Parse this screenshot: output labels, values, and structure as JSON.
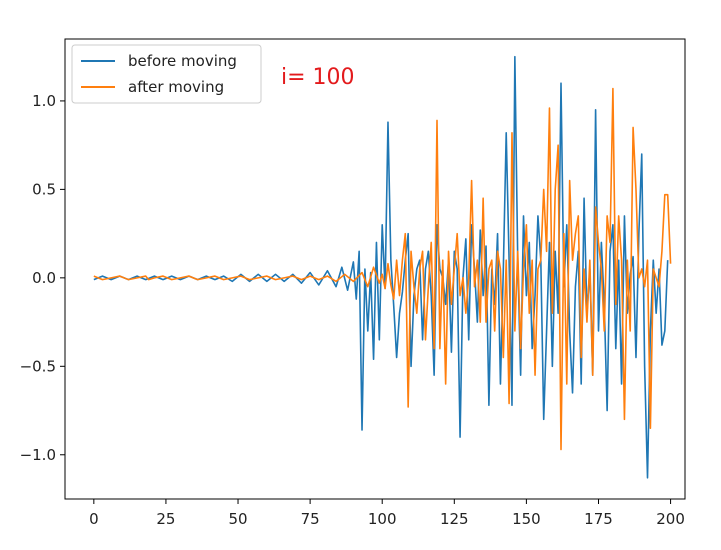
{
  "chart_data": {
    "type": "line",
    "title": "",
    "xlabel": "",
    "ylabel": "",
    "xlim": [
      -10,
      205
    ],
    "ylim": [
      -1.25,
      1.35
    ],
    "grid": false,
    "legend_position": "top-left",
    "annotation": {
      "text": "i= 100",
      "color": "#e31a1c"
    },
    "x_ticks": [
      0,
      25,
      50,
      75,
      100,
      125,
      150,
      175,
      200
    ],
    "y_ticks": [
      -1.0,
      -0.5,
      0.0,
      0.5,
      1.0
    ],
    "x_tick_labels": [
      "0",
      "25",
      "50",
      "75",
      "100",
      "125",
      "150",
      "175",
      "200"
    ],
    "y_tick_labels": [
      "−1.0",
      "−0.5",
      "0.0",
      "0.5",
      "1.0"
    ],
    "series": [
      {
        "name": "before moving",
        "color": "#1f77b4",
        "x": [
          0,
          3,
          6,
          9,
          12,
          15,
          18,
          21,
          24,
          27,
          30,
          33,
          36,
          39,
          42,
          45,
          48,
          51,
          54,
          57,
          60,
          63,
          66,
          69,
          72,
          75,
          78,
          81,
          84,
          86,
          88,
          90,
          91,
          92,
          93,
          94,
          95,
          96,
          97,
          98,
          99,
          100,
          101,
          102,
          103,
          104,
          105,
          106,
          107,
          108,
          109,
          110,
          111,
          112,
          113,
          114,
          115,
          116,
          117,
          118,
          119,
          120,
          121,
          122,
          123,
          124,
          125,
          126,
          127,
          128,
          129,
          130,
          131,
          132,
          133,
          134,
          135,
          136,
          137,
          138,
          139,
          140,
          141,
          142,
          143,
          144,
          145,
          146,
          147,
          148,
          149,
          150,
          151,
          152,
          153,
          154,
          155,
          156,
          157,
          158,
          159,
          160,
          161,
          162,
          163,
          164,
          165,
          166,
          167,
          168,
          169,
          170,
          171,
          172,
          173,
          174,
          175,
          176,
          177,
          178,
          179,
          180,
          181,
          182,
          183,
          184,
          185,
          186,
          187,
          188,
          189,
          190,
          191,
          192,
          193,
          194,
          195,
          196,
          197,
          198,
          199
        ],
        "y": [
          -0.01,
          0.01,
          -0.01,
          0.01,
          -0.01,
          0.01,
          -0.01,
          0.01,
          -0.01,
          0.01,
          -0.01,
          0.01,
          -0.01,
          0.01,
          -0.01,
          0.01,
          -0.02,
          0.02,
          -0.02,
          0.02,
          -0.02,
          0.02,
          -0.02,
          0.02,
          -0.03,
          0.03,
          -0.04,
          0.04,
          -0.05,
          0.06,
          -0.07,
          0.09,
          -0.12,
          0.15,
          -0.86,
          0.05,
          -0.3,
          0.03,
          -0.46,
          0.2,
          -0.35,
          0.3,
          -0.06,
          0.88,
          0.1,
          -0.16,
          -0.45,
          -0.2,
          -0.08,
          0.1,
          0.25,
          -0.5,
          -0.1,
          0.05,
          0.1,
          -0.35,
          0.05,
          0.15,
          -0.1,
          -0.55,
          0.3,
          0.05,
          0.0,
          -0.15,
          0.1,
          -0.42,
          0.15,
          0.05,
          -0.9,
          0.0,
          0.22,
          -0.35,
          0.3,
          0.05,
          -0.25,
          0.27,
          -0.1,
          0.18,
          -0.72,
          0.05,
          -0.15,
          0.25,
          -0.6,
          0.05,
          0.82,
          0.1,
          -0.72,
          1.25,
          0.1,
          -0.55,
          0.35,
          -0.1,
          0.2,
          -0.4,
          -0.1,
          0.35,
          0.1,
          -0.8,
          -0.3,
          0.2,
          -0.5,
          0.15,
          -0.2,
          1.1,
          -0.05,
          0.3,
          -0.3,
          -0.65,
          -0.05,
          0.15,
          -0.6,
          0.45,
          -0.2,
          0.05,
          -0.55,
          0.95,
          -0.3,
          0.2,
          -0.15,
          -0.75,
          0.15,
          0.3,
          -0.4,
          0.1,
          -0.6,
          0.35,
          -0.2,
          0.02,
          0.12,
          -0.45,
          0.25,
          0.7,
          -0.5,
          -1.13,
          -0.3,
          0.1,
          -0.2,
          0.05,
          -0.38,
          -0.3,
          0.1
        ]
      },
      {
        "name": "after moving",
        "color": "#ff7f0e",
        "x": [
          0,
          3,
          6,
          9,
          12,
          15,
          18,
          19,
          21,
          24,
          27,
          30,
          33,
          36,
          39,
          42,
          45,
          48,
          51,
          54,
          57,
          60,
          63,
          66,
          69,
          72,
          75,
          78,
          81,
          84,
          87,
          90,
          93,
          95,
          97,
          99,
          100,
          101,
          102,
          103,
          104,
          105,
          106,
          107,
          108,
          109,
          110,
          111,
          112,
          113,
          114,
          115,
          116,
          117,
          118,
          119,
          120,
          121,
          122,
          123,
          124,
          125,
          126,
          127,
          128,
          129,
          130,
          131,
          132,
          133,
          134,
          135,
          136,
          137,
          138,
          139,
          140,
          141,
          142,
          143,
          144,
          145,
          146,
          147,
          148,
          149,
          150,
          151,
          152,
          153,
          154,
          155,
          156,
          157,
          158,
          159,
          160,
          161,
          162,
          163,
          164,
          165,
          166,
          167,
          168,
          169,
          170,
          171,
          172,
          173,
          174,
          175,
          176,
          177,
          178,
          179,
          180,
          181,
          182,
          183,
          184,
          185,
          186,
          187,
          188,
          189,
          190,
          191,
          192,
          193,
          194,
          195,
          196,
          197,
          198,
          199,
          200
        ],
        "y": [
          0.01,
          -0.01,
          0.0,
          0.01,
          -0.01,
          0.0,
          0.01,
          -0.01,
          0.0,
          0.01,
          -0.01,
          0.0,
          0.01,
          -0.01,
          0.0,
          0.01,
          -0.01,
          0.0,
          0.01,
          -0.01,
          0.0,
          0.01,
          -0.01,
          0.0,
          0.01,
          -0.01,
          0.01,
          -0.01,
          0.01,
          -0.02,
          0.02,
          -0.02,
          0.03,
          -0.05,
          0.06,
          -0.03,
          0.02,
          -0.06,
          0.08,
          -0.04,
          -0.12,
          0.1,
          -0.1,
          0.1,
          0.25,
          -0.73,
          0.15,
          -0.05,
          -0.2,
          0.05,
          0.15,
          -0.35,
          -0.05,
          0.2,
          -0.4,
          0.89,
          -0.4,
          0.1,
          -0.6,
          0.15,
          -0.15,
          0.05,
          0.25,
          -0.1,
          0.0,
          -0.2,
          0.0,
          0.55,
          -0.05,
          0.1,
          -0.25,
          0.45,
          -0.25,
          0.05,
          0.1,
          -0.3,
          0.15,
          0.05,
          -0.45,
          0.1,
          -0.71,
          0.82,
          -0.3,
          0.15,
          -0.4,
          0.05,
          0.3,
          -0.2,
          0.1,
          -0.55,
          0.05,
          0.1,
          0.5,
          0.15,
          0.96,
          -0.2,
          0.5,
          0.75,
          -0.97,
          0.25,
          -0.6,
          0.55,
          0.1,
          0.25,
          0.35,
          -0.45,
          0.05,
          -0.25,
          0.1,
          -0.55,
          0.4,
          0.2,
          0.05,
          -0.3,
          0.35,
          0.2,
          1.07,
          -0.15,
          0.35,
          0.1,
          -0.8,
          0.1,
          -0.3,
          0.85,
          0.5,
          0.0,
          0.05,
          -0.05,
          0.1,
          -0.85,
          0.05,
          0.0,
          -0.05,
          0.15,
          0.47,
          0.47,
          0.08
        ]
      }
    ]
  }
}
